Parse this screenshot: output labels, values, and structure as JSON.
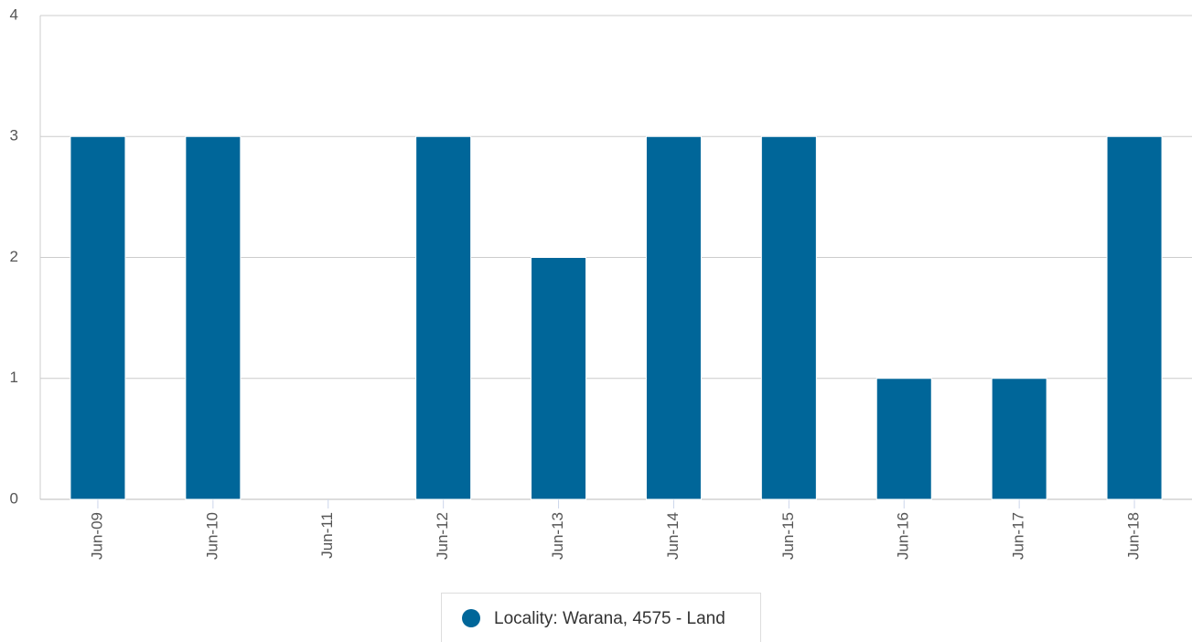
{
  "chart_data": {
    "type": "bar",
    "categories": [
      "Jun-09",
      "Jun-10",
      "Jun-11",
      "Jun-12",
      "Jun-13",
      "Jun-14",
      "Jun-15",
      "Jun-16",
      "Jun-17",
      "Jun-18"
    ],
    "series": [
      {
        "name": "Locality: Warana, 4575 - Land",
        "color": "#006699",
        "values": [
          3,
          3,
          0,
          3,
          2,
          3,
          3,
          1,
          1,
          3
        ]
      }
    ],
    "ylim": [
      0,
      4
    ],
    "yticks": [
      0,
      1,
      2,
      3,
      4
    ],
    "grid": true,
    "legend": "bottom"
  }
}
